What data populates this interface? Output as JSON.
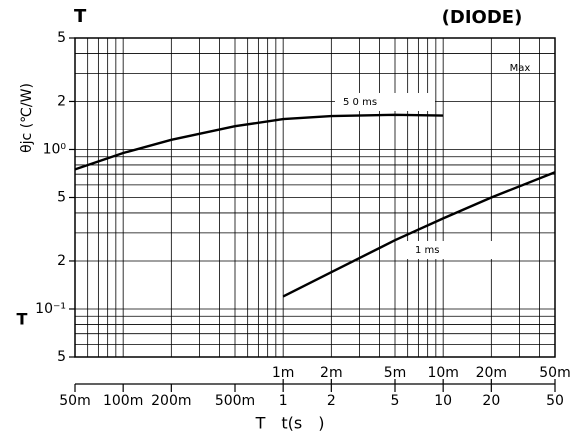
{
  "chart_data": {
    "type": "line",
    "title": "T",
    "subtitle": "(DIODE)",
    "y_label": "θjc (℃/W)",
    "y_label_bottom": "T",
    "x_label": "T　t(s　)",
    "annotations": [
      "Max"
    ],
    "log_x": true,
    "log_y": true,
    "grid": true,
    "xlim": [
      0.05,
      50
    ],
    "x2lim": [
      5e-05,
      0.05
    ],
    "ylim": [
      0.05,
      5
    ],
    "xticks": [
      {
        "value": 0.05,
        "label": "50m"
      },
      {
        "value": 0.1,
        "label": "100m"
      },
      {
        "value": 0.2,
        "label": "200m"
      },
      {
        "value": 0.5,
        "label": "500m"
      },
      1,
      2,
      5,
      10,
      20,
      50
    ],
    "x2ticks": [
      {
        "value": 0.001,
        "label": "1m"
      },
      {
        "value": 0.002,
        "label": "2m"
      },
      {
        "value": 0.005,
        "label": "5m"
      },
      {
        "value": 0.01,
        "label": "10m"
      },
      {
        "value": 0.02,
        "label": "20m"
      },
      {
        "value": 0.05,
        "label": "50m"
      }
    ],
    "yticks": [
      5,
      2,
      {
        "value": 1,
        "label": "10⁰"
      },
      {
        "value": 0.5,
        "label": "5"
      },
      {
        "value": 0.2,
        "label": "2"
      },
      {
        "value": 0.1,
        "label": "10⁻¹"
      },
      {
        "value": 0.05,
        "label": "5"
      }
    ],
    "xgrid": [
      0.05,
      0.06,
      0.07,
      0.08,
      0.09,
      0.1,
      0.2,
      0.3,
      0.4,
      0.5,
      0.6,
      0.7,
      0.8,
      0.9,
      1,
      2,
      3,
      4,
      5,
      6,
      7,
      8,
      9,
      10,
      20,
      30,
      40,
      50
    ],
    "ygrid": [
      0.05,
      0.06,
      0.07,
      0.08,
      0.09,
      0.1,
      0.2,
      0.3,
      0.4,
      0.5,
      0.6,
      0.7,
      0.8,
      0.9,
      1,
      2,
      3,
      4,
      5
    ],
    "series": [
      {
        "name": "5 0 ms",
        "color": "#000000",
        "x": [
          0.05,
          0.1,
          0.2,
          0.5,
          1,
          2,
          5,
          10
        ],
        "values": [
          0.75,
          0.95,
          1.15,
          1.4,
          1.55,
          1.62,
          1.65,
          1.63
        ]
      },
      {
        "name": "1 ms",
        "color": "#000000",
        "axis": "x2",
        "x": [
          0.001,
          0.002,
          0.005,
          0.01,
          0.02,
          0.05
        ],
        "values": [
          0.12,
          0.17,
          0.27,
          0.37,
          0.5,
          0.72
        ]
      }
    ]
  }
}
